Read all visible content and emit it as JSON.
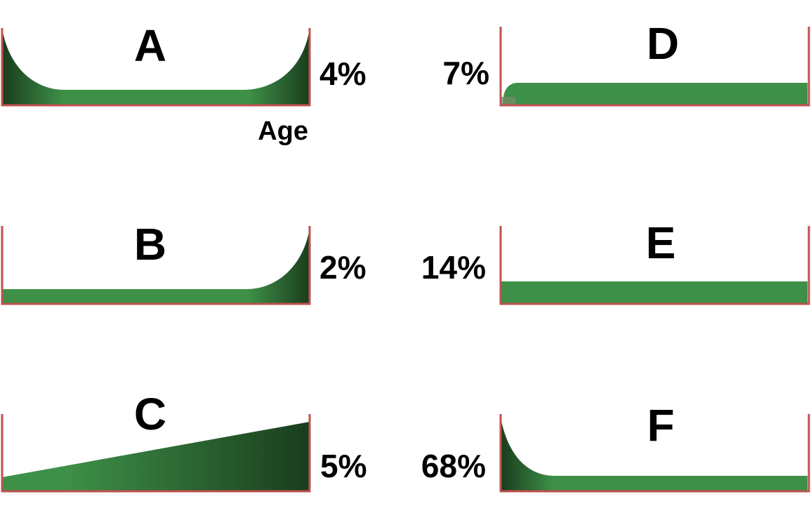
{
  "colors": {
    "frame": "#c0504d",
    "fill_light": "#3e9048",
    "fill_dark": "#1a3d1d"
  },
  "axis_label": "Age",
  "panels": [
    {
      "letter": "A",
      "percent": "4%",
      "shape": "bathtub"
    },
    {
      "letter": "B",
      "percent": "2%",
      "shape": "rising-end"
    },
    {
      "letter": "C",
      "percent": "5%",
      "shape": "increasing"
    },
    {
      "letter": "D",
      "percent": "7%",
      "shape": "infant-then-flat"
    },
    {
      "letter": "E",
      "percent": "14%",
      "shape": "constant"
    },
    {
      "letter": "F",
      "percent": "68%",
      "shape": "decreasing-then-flat"
    }
  ]
}
